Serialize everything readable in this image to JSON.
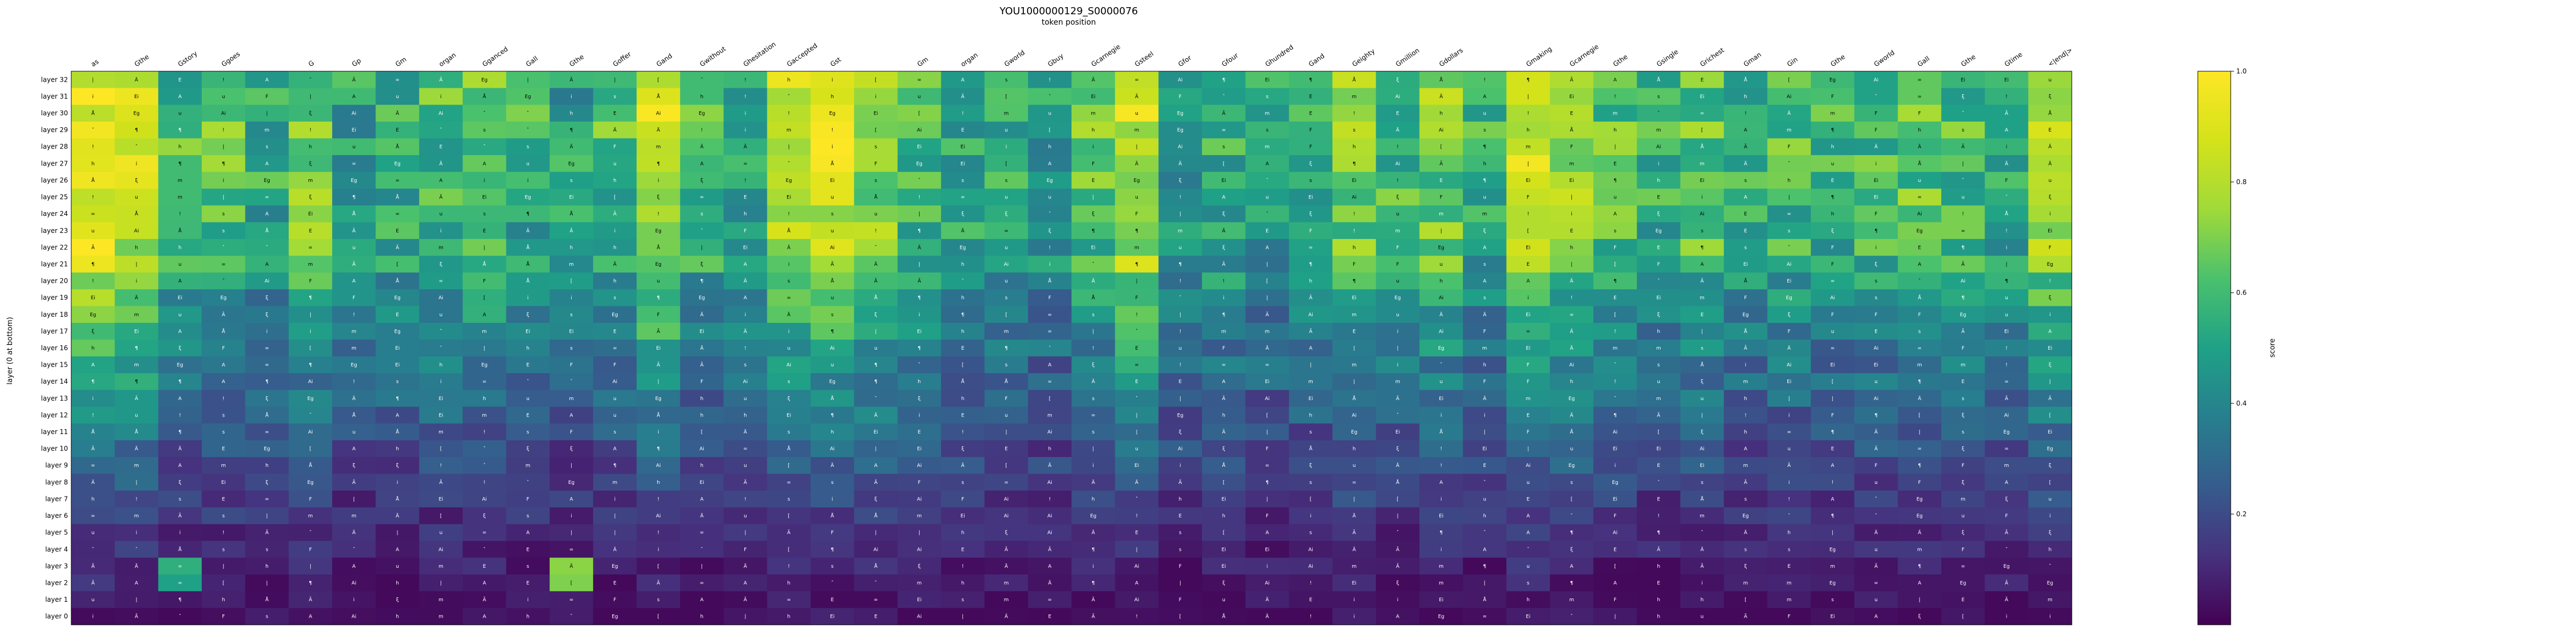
{
  "chart_data": {
    "type": "heatmap",
    "title": "YOU1000000129_S0000076",
    "subtitle": "token position",
    "xlabel": "token position",
    "ylabel": "layer (0 at bottom)",
    "colorbar": {
      "label": "score",
      "range": [
        0.0,
        1.0
      ],
      "ticks": [
        "0.2",
        "0.4",
        "0.6",
        "0.8",
        "1.0"
      ],
      "tick_values": [
        0.2,
        0.4,
        0.6,
        0.8,
        1.0
      ],
      "colormap": "viridis"
    },
    "x_tokens": [
      "as",
      "Gthe",
      "Gstory",
      "Ggoes",
      "",
      "G",
      "Gp",
      "Gm",
      "organ",
      "Gganced",
      "Gall",
      "Gthe",
      "Goffer",
      "Gand",
      "Gwithout",
      "Ghesitation",
      "Gaccepted",
      "Gst",
      "",
      "Gm",
      "organ",
      "Gworld",
      "Gbuy",
      "Gcarnegie",
      "Gsteel",
      "Gfor",
      "Gfour",
      "Ghundred",
      "Gand",
      "Geighty",
      "Gmillion",
      "Gdollars",
      "",
      "Gmaking",
      "Gcarnegie",
      "Gthe",
      "Gsingle",
      "Grichest",
      "Gman",
      "Gin",
      "Gthe",
      "Gworld",
      "Gall",
      "Gthe",
      "Gtime",
      "<|end|>"
    ],
    "y_layers": [
      "layer 32",
      "layer 31",
      "layer 30",
      "layer 29",
      "layer 28",
      "layer 27",
      "layer 26",
      "layer 25",
      "layer 24",
      "layer 23",
      "layer 22",
      "layer 21",
      "layer 20",
      "layer 19",
      "layer 18",
      "layer 17",
      "layer 16",
      "layer 15",
      "layer 14",
      "layer 13",
      "layer 12",
      "layer 11",
      "layer 10",
      "layer 9",
      "layer 8",
      "layer 7",
      "layer 6",
      "layer 5",
      "layer 4",
      "layer 3",
      "layer 2",
      "layer 1",
      "layer 0"
    ],
    "column_base": [
      0.95,
      0.88,
      0.6,
      0.65,
      0.55,
      0.7,
      0.5,
      0.55,
      0.6,
      0.65,
      0.55,
      0.5,
      0.6,
      0.85,
      0.6,
      0.55,
      0.8,
      0.85,
      0.75,
      0.6,
      0.55,
      0.55,
      0.5,
      0.65,
      0.85,
      0.5,
      0.55,
      0.5,
      0.55,
      0.7,
      0.6,
      0.7,
      0.55,
      0.85,
      0.75,
      0.65,
      0.55,
      0.65,
      0.55,
      0.6,
      0.55,
      0.6,
      0.65,
      0.6,
      0.55,
      0.8
    ],
    "layer_scale": [
      1.0,
      1.0,
      1.0,
      1.0,
      1.0,
      0.98,
      0.97,
      0.97,
      0.95,
      0.95,
      0.93,
      0.9,
      0.8,
      0.72,
      0.68,
      0.64,
      0.6,
      0.55,
      0.52,
      0.48,
      0.45,
      0.4,
      0.36,
      0.32,
      0.28,
      0.25,
      0.21,
      0.18,
      0.15,
      0.12,
      0.1,
      0.07,
      0.05
    ],
    "cell_glyphs": [
      "Ei",
      "A",
      "Eg",
      "=",
      "i",
      "¶",
      "Ai",
      "E",
      "ξ",
      "m",
      "Å",
      "|",
      "u",
      "s",
      "[",
      "!",
      "Ä",
      "ˆ",
      "F",
      "Ã",
      "h"
    ],
    "highlights": [
      {
        "row": "layer 3",
        "col": 2,
        "value": 0.55
      },
      {
        "row": "layer 2",
        "col": 2,
        "value": 0.5
      },
      {
        "row": "layer 3",
        "col": 11,
        "value": 0.72
      },
      {
        "row": "layer 2",
        "col": 11,
        "value": 0.7
      }
    ]
  }
}
